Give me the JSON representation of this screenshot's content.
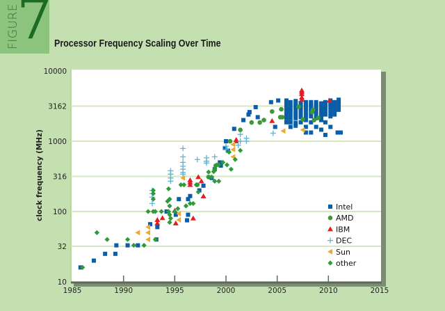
{
  "figure": {
    "word": "FIGURE",
    "number": "7"
  },
  "chart_data": {
    "type": "scatter",
    "title": "Processor Frequency Scaling Over Time",
    "xlabel": "",
    "ylabel": "clock frequency (MHz)",
    "xlim": [
      1985,
      2015
    ],
    "ylim": [
      10,
      10000
    ],
    "yscale": "log",
    "xticks": [
      "1985",
      "1990",
      "1995",
      "2000",
      "2005",
      "2010",
      "2015"
    ],
    "yticks": [
      "10",
      "32",
      "100",
      "316",
      "1000",
      "3162",
      "10000"
    ],
    "grid": "horizontal",
    "legend_position": "bottom-right",
    "series": [
      {
        "name": "Intel",
        "marker": "square",
        "color": "#0a5ea8",
        "points": [
          [
            1985.8,
            16
          ],
          [
            1987.1,
            20
          ],
          [
            1988.2,
            25
          ],
          [
            1989.2,
            25
          ],
          [
            1989.3,
            33
          ],
          [
            1990.4,
            33
          ],
          [
            1991.4,
            33
          ],
          [
            1992.6,
            66
          ],
          [
            1993.2,
            40
          ],
          [
            1993.3,
            60
          ],
          [
            1994.2,
            100
          ],
          [
            1995.1,
            90
          ],
          [
            1995.4,
            150
          ],
          [
            1996.2,
            75
          ],
          [
            1996.3,
            90
          ],
          [
            1996.3,
            150
          ],
          [
            1996.5,
            166
          ],
          [
            1997.4,
            200
          ],
          [
            1997.8,
            233
          ],
          [
            1998.6,
            300
          ],
          [
            1998.9,
            400
          ],
          [
            1999.4,
            500
          ],
          [
            1999.5,
            450
          ],
          [
            1999.9,
            800
          ],
          [
            2000.0,
            1000
          ],
          [
            2000.2,
            733
          ],
          [
            2000.8,
            1500
          ],
          [
            2001.7,
            2000
          ],
          [
            2002.2,
            2400
          ],
          [
            2002.3,
            2600
          ],
          [
            2002.9,
            3060
          ],
          [
            2003.1,
            2200
          ],
          [
            2004.4,
            3600
          ],
          [
            2004.8,
            1600
          ],
          [
            2005.1,
            3800
          ],
          [
            2005.9,
            3800
          ],
          [
            2005.9,
            3400
          ],
          [
            2005.9,
            3000
          ],
          [
            2005.9,
            2800
          ],
          [
            2005.9,
            2660
          ],
          [
            2005.9,
            2400
          ],
          [
            2005.9,
            2130
          ],
          [
            2005.9,
            1860
          ],
          [
            2006.3,
            3600
          ],
          [
            2006.3,
            3200
          ],
          [
            2006.3,
            2930
          ],
          [
            2006.3,
            2660
          ],
          [
            2006.3,
            2400
          ],
          [
            2006.3,
            2130
          ],
          [
            2006.3,
            1860
          ],
          [
            2006.3,
            1600
          ],
          [
            2006.8,
            3730
          ],
          [
            2006.8,
            3460
          ],
          [
            2006.8,
            3200
          ],
          [
            2006.8,
            3000
          ],
          [
            2006.8,
            2800
          ],
          [
            2006.8,
            2500
          ],
          [
            2006.8,
            2330
          ],
          [
            2006.8,
            2130
          ],
          [
            2006.8,
            1830
          ],
          [
            2006.8,
            1660
          ],
          [
            2007.3,
            3500
          ],
          [
            2007.3,
            3330
          ],
          [
            2007.3,
            3000
          ],
          [
            2007.3,
            2800
          ],
          [
            2007.3,
            2660
          ],
          [
            2007.3,
            2400
          ],
          [
            2007.3,
            2200
          ],
          [
            2007.3,
            1860
          ],
          [
            2007.8,
            3600
          ],
          [
            2007.8,
            3330
          ],
          [
            2007.8,
            3160
          ],
          [
            2007.8,
            3000
          ],
          [
            2007.8,
            2830
          ],
          [
            2007.8,
            2500
          ],
          [
            2007.8,
            2260
          ],
          [
            2007.8,
            2000
          ],
          [
            2007.8,
            1600
          ],
          [
            2007.8,
            1330
          ],
          [
            2008.3,
            3600
          ],
          [
            2008.3,
            3400
          ],
          [
            2008.3,
            3200
          ],
          [
            2008.3,
            3000
          ],
          [
            2008.3,
            2800
          ],
          [
            2008.3,
            2660
          ],
          [
            2008.3,
            2500
          ],
          [
            2008.3,
            2260
          ],
          [
            2008.3,
            1860
          ],
          [
            2008.3,
            1330
          ],
          [
            2008.8,
            3600
          ],
          [
            2008.8,
            3330
          ],
          [
            2008.8,
            3070
          ],
          [
            2008.8,
            2930
          ],
          [
            2008.8,
            2660
          ],
          [
            2008.8,
            2400
          ],
          [
            2008.8,
            2130
          ],
          [
            2008.8,
            1600
          ],
          [
            2009.3,
            3460
          ],
          [
            2009.3,
            3200
          ],
          [
            2009.3,
            3000
          ],
          [
            2009.3,
            2800
          ],
          [
            2009.3,
            2660
          ],
          [
            2009.3,
            2530
          ],
          [
            2009.3,
            2260
          ],
          [
            2009.3,
            2000
          ],
          [
            2009.3,
            1460
          ],
          [
            2009.7,
            3600
          ],
          [
            2009.7,
            3330
          ],
          [
            2009.7,
            3060
          ],
          [
            2009.7,
            2930
          ],
          [
            2009.7,
            2660
          ],
          [
            2009.7,
            2400
          ],
          [
            2009.7,
            1860
          ],
          [
            2009.7,
            1230
          ],
          [
            2010.2,
            3800
          ],
          [
            2010.2,
            3460
          ],
          [
            2010.2,
            3330
          ],
          [
            2010.2,
            3060
          ],
          [
            2010.2,
            2800
          ],
          [
            2010.2,
            2530
          ],
          [
            2010.2,
            2260
          ],
          [
            2010.2,
            1600
          ],
          [
            2010.6,
            3600
          ],
          [
            2010.6,
            3460
          ],
          [
            2010.6,
            3200
          ],
          [
            2010.6,
            2930
          ],
          [
            2010.6,
            2660
          ],
          [
            2010.6,
            2400
          ],
          [
            2011.0,
            3900
          ],
          [
            2011.0,
            3460
          ],
          [
            2011.0,
            3200
          ],
          [
            2011.0,
            2800
          ],
          [
            2010.9,
            1330
          ],
          [
            2011.2,
            1330
          ]
        ]
      },
      {
        "name": "AMD",
        "marker": "circle",
        "color": "#3a9a3a",
        "points": [
          [
            1997.2,
            240
          ],
          [
            1998.3,
            310
          ],
          [
            1999.0,
            450
          ],
          [
            2000.4,
            1000
          ],
          [
            2001.4,
            1450
          ],
          [
            2002.5,
            1850
          ],
          [
            2003.3,
            1850
          ],
          [
            2003.7,
            2000
          ],
          [
            2004.5,
            2650
          ],
          [
            2005.3,
            2200
          ],
          [
            2005.5,
            2200
          ],
          [
            2005.4,
            2850
          ],
          [
            2007.1,
            3100
          ],
          [
            2007.5,
            2050
          ],
          [
            2008.4,
            2600
          ],
          [
            2008.6,
            2000
          ],
          [
            2009.0,
            2150
          ],
          [
            2008.5,
            2800
          ]
        ]
      },
      {
        "name": "IBM",
        "marker": "triangle",
        "color": "#e02020",
        "points": [
          [
            1993.3,
            76
          ],
          [
            1993.3,
            68
          ],
          [
            1993.8,
            81
          ],
          [
            1995.0,
            103
          ],
          [
            1995.1,
            68
          ],
          [
            1996.5,
            280
          ],
          [
            1996.5,
            260
          ],
          [
            1996.5,
            240
          ],
          [
            1996.8,
            80
          ],
          [
            1997.3,
            310
          ],
          [
            1997.6,
            270
          ],
          [
            1997.8,
            165
          ],
          [
            2001.0,
            1000
          ],
          [
            2001.0,
            1050
          ],
          [
            2004.5,
            1950
          ],
          [
            2007.4,
            3900
          ],
          [
            2007.4,
            4200
          ],
          [
            2007.4,
            4700
          ],
          [
            2007.4,
            5000
          ],
          [
            2007.4,
            5300
          ],
          [
            2010.1,
            3800
          ]
        ]
      },
      {
        "name": "DEC",
        "marker": "plus",
        "color": "#5ab4d8",
        "points": [
          [
            1992.8,
            200
          ],
          [
            1992.8,
            180
          ],
          [
            1992.8,
            160
          ],
          [
            1992.8,
            130
          ],
          [
            1994.6,
            380
          ],
          [
            1994.6,
            340
          ],
          [
            1994.6,
            300
          ],
          [
            1994.6,
            270
          ],
          [
            1995.8,
            790
          ],
          [
            1995.8,
            600
          ],
          [
            1995.8,
            500
          ],
          [
            1995.8,
            440
          ],
          [
            1995.8,
            400
          ],
          [
            1995.8,
            360
          ],
          [
            1995.8,
            340
          ],
          [
            1997.2,
            550
          ],
          [
            1998.1,
            580
          ],
          [
            1998.1,
            520
          ],
          [
            1998.1,
            490
          ],
          [
            1998.9,
            600
          ],
          [
            2000.0,
            850
          ],
          [
            2000.0,
            760
          ],
          [
            2001.2,
            880
          ],
          [
            2001.4,
            1250
          ],
          [
            2001.4,
            1000
          ],
          [
            2002.0,
            1100
          ],
          [
            2002.0,
            1000
          ],
          [
            2004.6,
            1300
          ]
        ]
      },
      {
        "name": "Sun",
        "marker": "triangle-left",
        "color": "#f0a830",
        "points": [
          [
            1991.4,
            50
          ],
          [
            1992.4,
            60
          ],
          [
            1992.4,
            50
          ],
          [
            1992.4,
            40
          ],
          [
            1995.4,
            93
          ],
          [
            1995.4,
            76
          ],
          [
            1995.8,
            300
          ],
          [
            2000.7,
            900
          ],
          [
            2000.7,
            760
          ],
          [
            2000.7,
            600
          ],
          [
            2005.6,
            1400
          ],
          [
            2007.5,
            1450
          ]
        ]
      },
      {
        "name": "other",
        "marker": "diamond",
        "color": "#2f9a3a",
        "points": [
          [
            1986.0,
            16
          ],
          [
            1987.4,
            50
          ],
          [
            1988.4,
            40
          ],
          [
            1990.4,
            40
          ],
          [
            1991.0,
            33
          ],
          [
            1992.0,
            33
          ],
          [
            1993.1,
            40
          ],
          [
            1992.4,
            100
          ],
          [
            1992.9,
            100
          ],
          [
            1993.1,
            100
          ],
          [
            1993.7,
            100
          ],
          [
            1992.9,
            200
          ],
          [
            1992.9,
            180
          ],
          [
            1992.9,
            150
          ],
          [
            1994.4,
            210
          ],
          [
            1994.5,
            150
          ],
          [
            1994.3,
            140
          ],
          [
            1994.5,
            120
          ],
          [
            1994.4,
            100
          ],
          [
            1994.5,
            90
          ],
          [
            1994.6,
            80
          ],
          [
            1994.5,
            70
          ],
          [
            1995.0,
            100
          ],
          [
            1995.3,
            110
          ],
          [
            1995.6,
            240
          ],
          [
            1995.9,
            240
          ],
          [
            1996.1,
            120
          ],
          [
            1996.5,
            130
          ],
          [
            1996.8,
            130
          ],
          [
            1997.1,
            240
          ],
          [
            1997.3,
            190
          ],
          [
            1998.3,
            365
          ],
          [
            1998.3,
            310
          ],
          [
            1998.6,
            310
          ],
          [
            1998.8,
            370
          ],
          [
            1998.9,
            400
          ],
          [
            1998.9,
            270
          ],
          [
            1999.1,
            460
          ],
          [
            1999.3,
            460
          ],
          [
            1999.3,
            270
          ],
          [
            2000.1,
            460
          ],
          [
            2000.5,
            400
          ],
          [
            2000.9,
            550
          ],
          [
            2001.4,
            740
          ],
          [
            2000.3,
            700
          ],
          [
            1999.7,
            500
          ]
        ]
      }
    ]
  }
}
